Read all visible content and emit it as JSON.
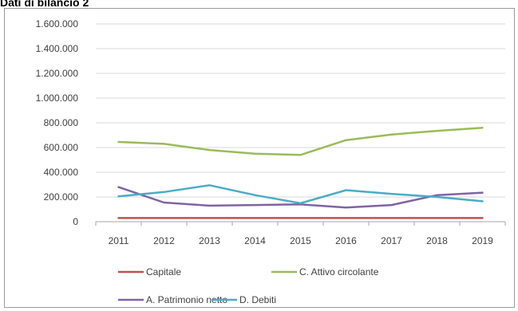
{
  "title": "Dati di bilancio 2",
  "chart_data": {
    "type": "line",
    "title": "Dati di bilancio 2",
    "x": [
      "2011",
      "2012",
      "2013",
      "2014",
      "2015",
      "2016",
      "2017",
      "2018",
      "2019"
    ],
    "ylim": [
      0,
      1600000
    ],
    "yticks": [
      0,
      200000,
      400000,
      600000,
      800000,
      1000000,
      1200000,
      1400000,
      1600000
    ],
    "ytick_labels": [
      "0",
      "200.000",
      "400.000",
      "600.000",
      "800.000",
      "1.000.000",
      "1.200.000",
      "1.400.000",
      "1.600.000"
    ],
    "grid": "horizontal",
    "legend_position": "bottom",
    "series": [
      {
        "name": "Capitale",
        "color": "#c0504d",
        "values": [
          30000,
          30000,
          30000,
          30000,
          30000,
          30000,
          30000,
          30000,
          30000
        ]
      },
      {
        "name": "C. Attivo circolante",
        "color": "#9bbb59",
        "values": [
          645000,
          630000,
          580000,
          550000,
          540000,
          660000,
          705000,
          735000,
          760000
        ]
      },
      {
        "name": "A. Patrimonio netto",
        "color": "#8064a2",
        "values": [
          280000,
          155000,
          130000,
          135000,
          140000,
          115000,
          135000,
          215000,
          235000
        ]
      },
      {
        "name": "D. Debiti",
        "color": "#4bacc6",
        "values": [
          205000,
          240000,
          295000,
          215000,
          150000,
          255000,
          225000,
          200000,
          165000
        ]
      }
    ]
  }
}
